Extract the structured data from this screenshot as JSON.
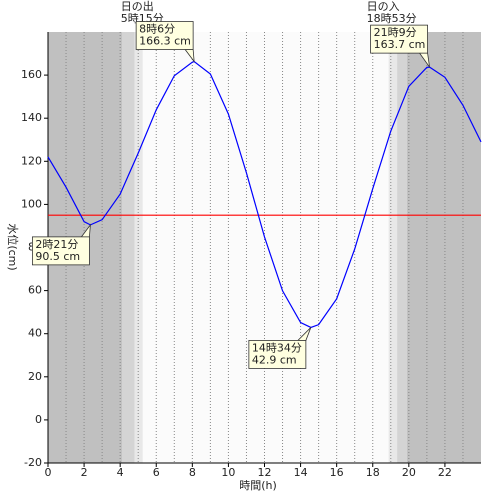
{
  "chart_data": {
    "type": "line",
    "xlabel": "時間(h)",
    "ylabel": "水位(cm)",
    "x": [
      0,
      1,
      2,
      2.35,
      3,
      4,
      5,
      6,
      7,
      8,
      8.1,
      9,
      10,
      11,
      12,
      13,
      14,
      14.57,
      15,
      16,
      17,
      18,
      19,
      20,
      21,
      21.15,
      22,
      23,
      24
    ],
    "series": [
      {
        "name": "水位",
        "color": "#0000ff",
        "values": [
          122,
          108,
          92,
          90.5,
          92.9,
          104.8,
          123.8,
          143.9,
          159.7,
          166,
          166.3,
          160.5,
          141.9,
          114.6,
          84.9,
          59.9,
          45.2,
          42.9,
          44.2,
          56.2,
          79.3,
          107.3,
          134,
          154.8,
          163.6,
          163.7,
          159,
          146,
          129
        ]
      }
    ],
    "xlim": [
      0,
      24
    ],
    "xticks": [
      0,
      2,
      4,
      6,
      8,
      10,
      12,
      14,
      16,
      18,
      20,
      22
    ],
    "xminorticks": [
      1,
      3,
      5,
      7,
      9,
      11,
      13,
      15,
      17,
      19,
      21,
      23
    ],
    "ylim": [
      -20,
      180
    ],
    "yticks": [
      -20,
      0,
      20,
      40,
      60,
      80,
      100,
      120,
      140,
      160
    ],
    "reference_line": {
      "value": 95,
      "color": "#ff0000"
    },
    "shading": [
      {
        "from": 0,
        "to": 4.1,
        "color": "#c0c0c0"
      },
      {
        "from": 4.1,
        "to": 4.8,
        "color": "#d4d4d4"
      },
      {
        "from": 4.8,
        "to": 5.25,
        "color": "#e8e8e8"
      },
      {
        "from": 18.88,
        "to": 19.35,
        "color": "#e8e8e8"
      },
      {
        "from": 19.35,
        "to": 19.9,
        "color": "#d4d4d4"
      },
      {
        "from": 19.9,
        "to": 24,
        "color": "#c0c0c0"
      }
    ],
    "sun": [
      {
        "label": "日の出",
        "time": "5時15分",
        "x": 5.25
      },
      {
        "label": "日の入",
        "time": "18時53分",
        "x": 18.88
      }
    ],
    "annotations": [
      {
        "x": 2.35,
        "y": 90.5,
        "time": "2時21分",
        "level": "90.5 cm"
      },
      {
        "x": 8.1,
        "y": 166.3,
        "time": "8時6分",
        "level": "166.3 cm"
      },
      {
        "x": 14.57,
        "y": 42.9,
        "time": "14時34分",
        "level": "42.9 cm"
      },
      {
        "x": 21.15,
        "y": 163.7,
        "time": "21時9分",
        "level": "163.7 cm"
      }
    ]
  }
}
